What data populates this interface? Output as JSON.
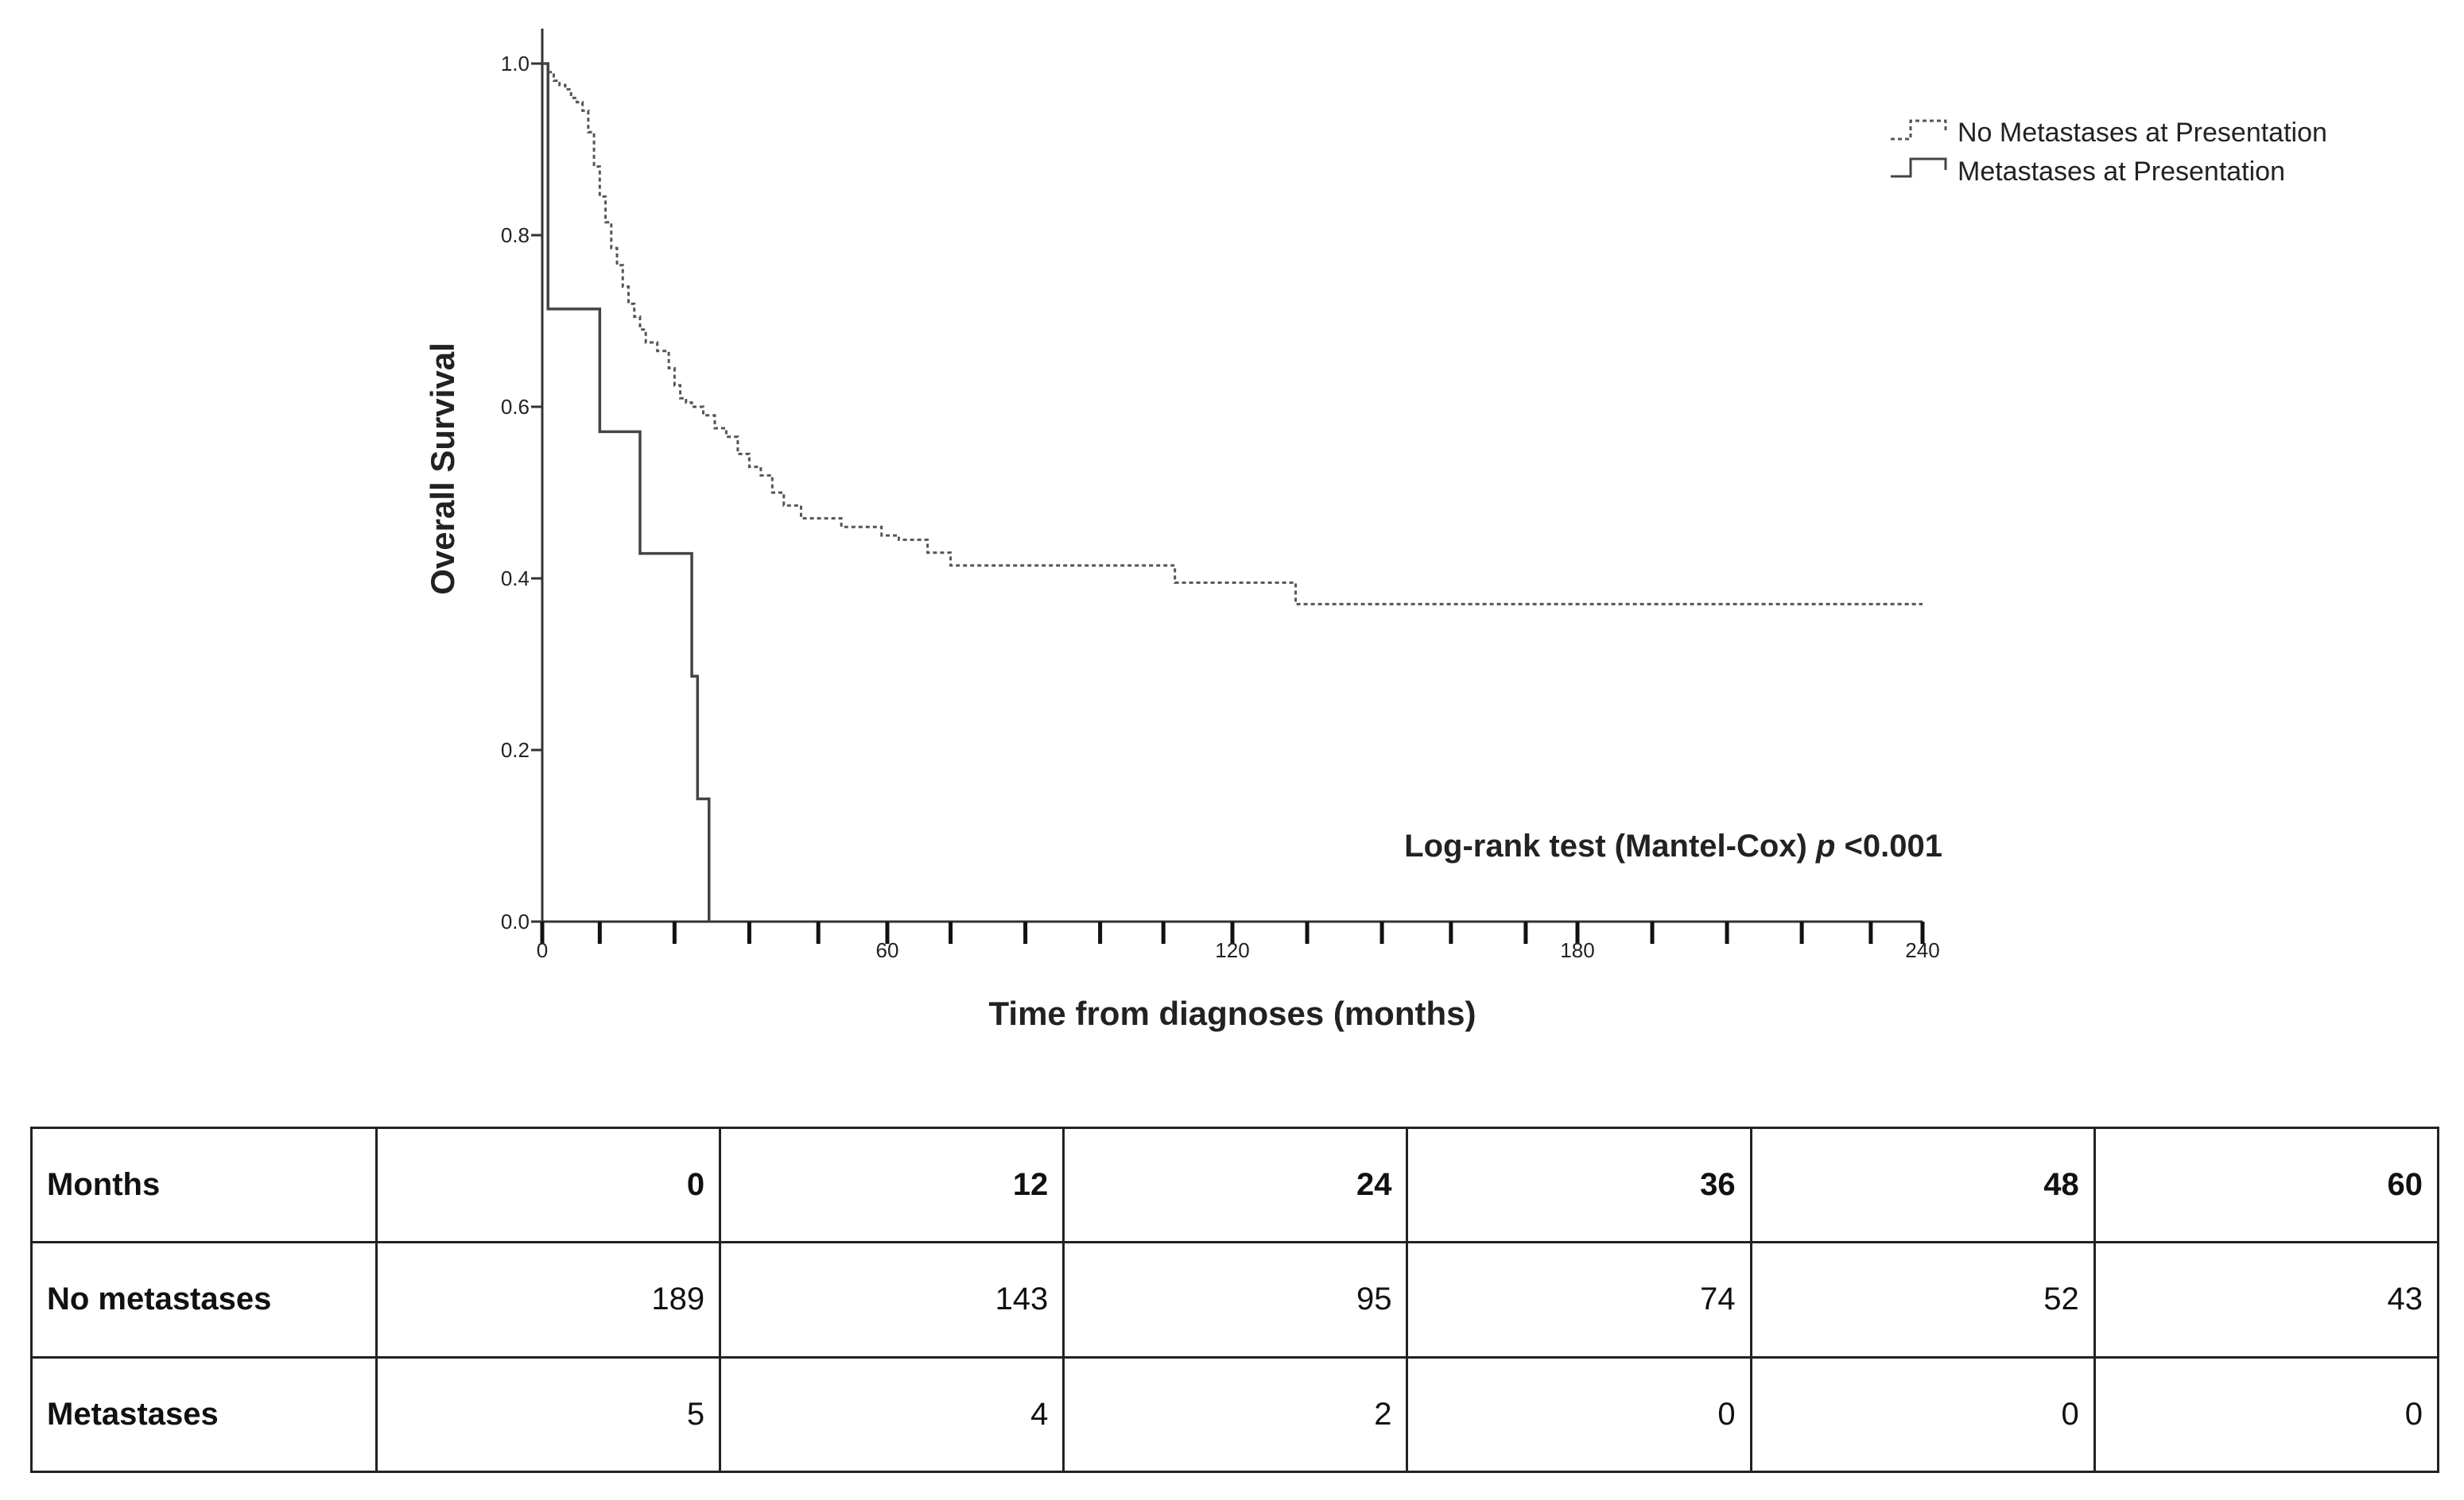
{
  "chart_data": {
    "type": "line",
    "style": "kaplan-meier step",
    "xlabel": "Time from diagnoses (months)",
    "ylabel": "Overall Survival",
    "xlim": [
      0,
      240
    ],
    "ylim": [
      0,
      1.0
    ],
    "x_ticks": [
      0,
      60,
      120,
      180,
      240
    ],
    "x_tick_labels": [
      "0",
      "60",
      "120",
      "180",
      "240"
    ],
    "x_minor_ticks": [
      10,
      23,
      36,
      48,
      71,
      84,
      97,
      108,
      133,
      146,
      158,
      171,
      193,
      206,
      219,
      231
    ],
    "y_ticks": [
      0.0,
      0.2,
      0.4,
      0.6,
      0.8,
      1.0
    ],
    "y_tick_labels": [
      "0.0",
      "0.2",
      "0.4",
      "0.6",
      "0.8",
      "1.0"
    ],
    "grid": false,
    "legend_position": "top-right",
    "series": [
      {
        "name": "No Metastases at Presentation",
        "line_style": "dotted",
        "color": "#555555",
        "x": [
          0,
          1,
          2,
          3,
          4,
          5,
          6,
          7,
          8,
          9,
          10,
          11,
          12,
          13,
          14,
          15,
          16,
          17,
          18,
          20,
          22,
          23,
          24,
          25,
          26,
          28,
          30,
          32,
          34,
          36,
          38,
          40,
          42,
          45,
          48,
          52,
          55,
          59,
          62,
          67,
          71,
          80,
          95,
          110,
          131,
          150,
          180,
          210,
          240
        ],
        "y": [
          1.0,
          0.99,
          0.98,
          0.975,
          0.97,
          0.96,
          0.955,
          0.945,
          0.92,
          0.88,
          0.845,
          0.815,
          0.785,
          0.765,
          0.74,
          0.72,
          0.705,
          0.69,
          0.675,
          0.665,
          0.645,
          0.625,
          0.61,
          0.605,
          0.6,
          0.59,
          0.575,
          0.565,
          0.545,
          0.53,
          0.52,
          0.5,
          0.485,
          0.47,
          0.47,
          0.46,
          0.46,
          0.45,
          0.445,
          0.43,
          0.415,
          0.415,
          0.415,
          0.395,
          0.37,
          0.37,
          0.37,
          0.37,
          0.37
        ]
      },
      {
        "name": "Metastases at Presentation",
        "line_style": "solid",
        "color": "#444444",
        "x": [
          0,
          1,
          9,
          10,
          17,
          26,
          27,
          29
        ],
        "y": [
          1.0,
          0.714,
          0.714,
          0.571,
          0.429,
          0.286,
          0.143,
          0.0
        ]
      }
    ],
    "annotation": {
      "text": "Log-rank test (Mantel-Cox)",
      "italic": "p",
      "value": "<0.001"
    }
  },
  "risk_table": {
    "header": {
      "label": "Months",
      "values": [
        "0",
        "12",
        "24",
        "36",
        "48",
        "60"
      ]
    },
    "rows": [
      {
        "label": "No metastases",
        "values": [
          "189",
          "143",
          "95",
          "74",
          "52",
          "43"
        ]
      },
      {
        "label": "Metastases",
        "values": [
          "5",
          "4",
          "2",
          "0",
          "0",
          "0"
        ]
      }
    ]
  }
}
